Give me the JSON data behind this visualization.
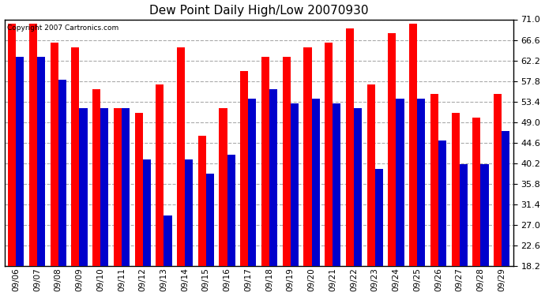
{
  "title": "Dew Point Daily High/Low 20070930",
  "copyright": "Copyright 2007 Cartronics.com",
  "dates": [
    "09/06",
    "09/07",
    "09/08",
    "09/09",
    "09/10",
    "09/11",
    "09/12",
    "09/13",
    "09/14",
    "09/15",
    "09/16",
    "09/17",
    "09/18",
    "09/19",
    "09/20",
    "09/21",
    "09/22",
    "09/23",
    "09/24",
    "09/25",
    "09/26",
    "09/27",
    "09/28",
    "09/29"
  ],
  "high": [
    70,
    70,
    66,
    65,
    56,
    52,
    51,
    57,
    65,
    46,
    52,
    60,
    63,
    63,
    65,
    66,
    69,
    57,
    68,
    70,
    55,
    51,
    50,
    55
  ],
  "low": [
    63,
    63,
    58,
    52,
    52,
    52,
    41,
    29,
    41,
    38,
    42,
    54,
    56,
    53,
    54,
    53,
    52,
    39,
    54,
    54,
    45,
    40,
    40,
    47
  ],
  "high_color": "#ff0000",
  "low_color": "#0000cc",
  "bg_color": "#ffffff",
  "grid_color": "#aaaaaa",
  "ymin": 18.2,
  "ymax": 71.0,
  "yticks": [
    18.2,
    22.6,
    27.0,
    31.4,
    35.8,
    40.2,
    44.6,
    49.0,
    53.4,
    57.8,
    62.2,
    66.6,
    71.0
  ],
  "bar_width": 0.38,
  "figwidth": 6.9,
  "figheight": 3.75,
  "dpi": 100
}
